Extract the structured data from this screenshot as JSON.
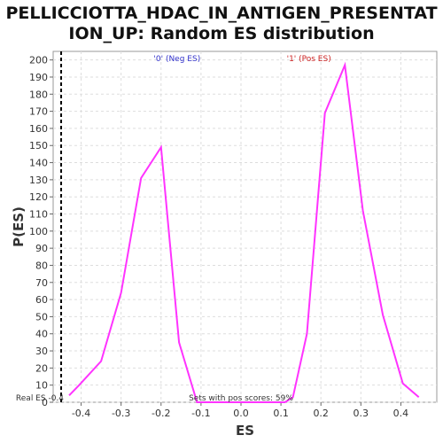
{
  "chart_data": {
    "type": "line",
    "title_line1": "PELLICCIOTTA_HDAC_IN_ANTIGEN_PRESENTAT",
    "title_line2": "ION_UP: Random ES distribution",
    "xlabel": "ES",
    "ylabel": "P(ES)",
    "xlim": [
      -0.47,
      0.49
    ],
    "ylim": [
      0,
      205
    ],
    "xticks": [
      -0.4,
      -0.3,
      -0.2,
      -0.1,
      0.0,
      0.1,
      0.2,
      0.3,
      0.4
    ],
    "xtick_labels": [
      "-0.4",
      "-0.3",
      "-0.2",
      "-0.1",
      "0.0",
      "0.1",
      "0.2",
      "0.3",
      "0.4"
    ],
    "yticks": [
      0,
      10,
      20,
      30,
      40,
      50,
      60,
      70,
      80,
      90,
      100,
      110,
      120,
      130,
      140,
      150,
      160,
      170,
      180,
      190,
      200
    ],
    "grid": true,
    "line_color": "#ff33ff",
    "series": [
      {
        "x": [
          -0.43,
          -0.405,
          -0.35,
          -0.3,
          -0.25,
          -0.2,
          -0.155,
          -0.11,
          0.0,
          0.11,
          0.13,
          0.165,
          0.21,
          0.26,
          0.305,
          0.355,
          0.405,
          0.445
        ],
        "y": [
          4,
          10,
          24,
          64,
          131,
          149,
          35,
          0,
          0,
          0,
          3,
          40,
          169,
          197,
          112,
          51,
          11,
          3
        ]
      }
    ],
    "vline": {
      "x": -0.45,
      "label": "Real ES -0.4",
      "color": "#000000"
    },
    "annotations": {
      "neg": {
        "text": "'0' (Neg ES)",
        "color": "#3333cc"
      },
      "pos": {
        "text": "'1' (Pos ES)",
        "color": "#cc2222"
      },
      "pos_scores": {
        "text": "Sets with pos scores: 59%",
        "color": "#333333"
      }
    }
  }
}
